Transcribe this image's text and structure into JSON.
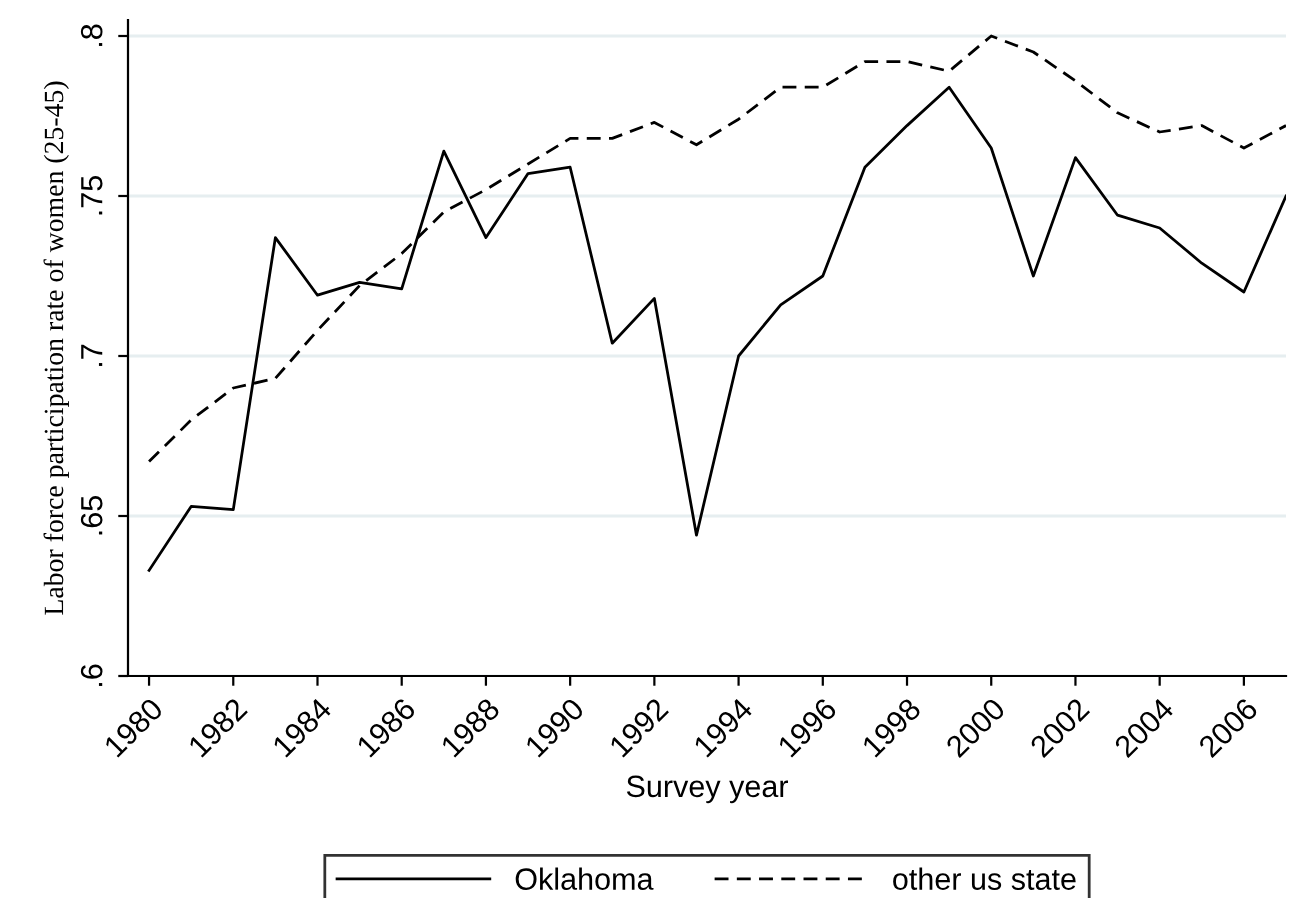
{
  "chart_data": {
    "type": "line",
    "xlabel": "Survey year",
    "ylabel": "Labor force participation rate of women (25-45)",
    "x": [
      1980,
      1981,
      1982,
      1983,
      1984,
      1985,
      1986,
      1987,
      1988,
      1989,
      1990,
      1991,
      1992,
      1993,
      1994,
      1995,
      1996,
      1997,
      1998,
      1999,
      2000,
      2001,
      2002,
      2003,
      2004,
      2005,
      2006,
      2007
    ],
    "series": [
      {
        "name": "Oklahoma",
        "color": "#000000",
        "line_style": "solid",
        "values": [
          0.633,
          0.653,
          0.652,
          0.737,
          0.719,
          0.723,
          0.721,
          0.764,
          0.737,
          0.757,
          0.759,
          0.704,
          0.718,
          0.644,
          0.7,
          0.716,
          0.725,
          0.759,
          0.772,
          0.784,
          0.765,
          0.725,
          0.762,
          0.744,
          0.74,
          0.729,
          0.72,
          0.75
        ]
      },
      {
        "name": "other us state",
        "color": "#000000",
        "line_style": "dashed",
        "values": [
          0.667,
          0.68,
          0.69,
          0.693,
          0.708,
          0.722,
          0.732,
          0.745,
          0.752,
          0.76,
          0.768,
          0.768,
          0.773,
          0.766,
          0.774,
          0.784,
          0.784,
          0.792,
          0.792,
          0.789,
          0.8,
          0.795,
          0.786,
          0.776,
          0.77,
          0.772,
          0.765,
          0.772
        ]
      }
    ],
    "xlim": [
      1979.5,
      2007
    ],
    "xticks": [
      1980,
      1982,
      1984,
      1986,
      1988,
      1990,
      1992,
      1994,
      1996,
      1998,
      2000,
      2002,
      2004,
      2006
    ],
    "ylim": [
      0.6,
      0.805
    ],
    "yticks": [
      {
        "value": 0.6,
        "label": ".6"
      },
      {
        "value": 0.65,
        "label": ".65"
      },
      {
        "value": 0.7,
        "label": ".7"
      },
      {
        "value": 0.75,
        "label": ".75"
      },
      {
        "value": 0.8,
        "label": ".8"
      }
    ],
    "grid": "y",
    "legend": "bottom",
    "marker": "none"
  }
}
